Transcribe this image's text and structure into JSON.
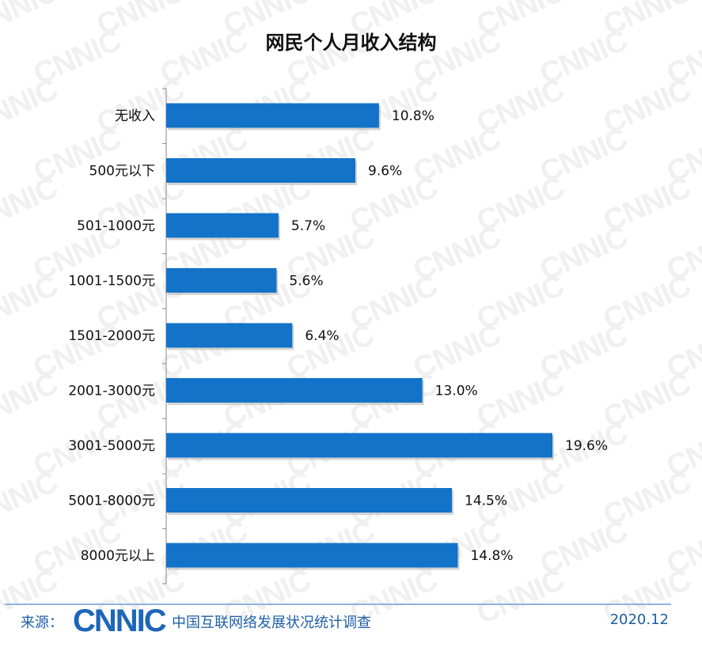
{
  "chart_data": {
    "type": "bar",
    "orientation": "horizontal",
    "title": "网民个人月收入结构",
    "categories": [
      "无收入",
      "500元以下",
      "501-1000元",
      "1001-1500元",
      "1501-2000元",
      "2001-3000元",
      "3001-5000元",
      "5001-8000元",
      "8000元以上"
    ],
    "values": [
      10.8,
      9.6,
      5.7,
      5.6,
      6.4,
      13.0,
      19.6,
      14.5,
      14.8
    ],
    "value_labels": [
      "10.8%",
      "9.6%",
      "5.7%",
      "5.6%",
      "6.4%",
      "13.0%",
      "19.6%",
      "14.5%",
      "14.8%"
    ],
    "xlim": [
      0,
      20
    ],
    "bar_color": "#1273c9",
    "grid": false,
    "legend": "none"
  },
  "watermark": {
    "text": "CNNIC"
  },
  "footer": {
    "source_label": "来源：",
    "logo_text": "CNNIC",
    "org_name": "中国互联网络发展状况统计调查",
    "date": "2020.12",
    "accent_color": "#1d66b8"
  }
}
